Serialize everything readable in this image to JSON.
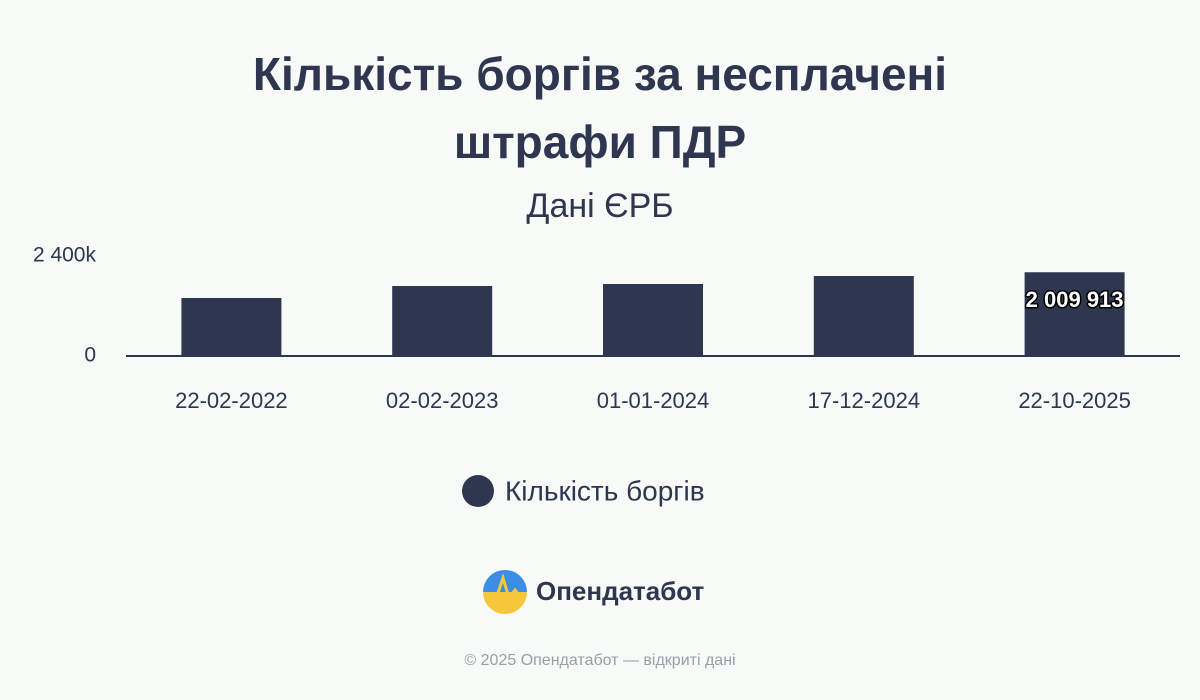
{
  "chart_data": {
    "type": "bar",
    "title": "Кількість боргів за несплачені штрафи ПДР",
    "subtitle": "Дані ЄРБ",
    "categories": [
      "22-02-2022",
      "02-02-2023",
      "01-01-2024",
      "17-12-2024",
      "22-10-2025"
    ],
    "series": [
      {
        "name": "Кількість боргів",
        "color": "#2e3650",
        "values": [
          1392000,
          1680000,
          1728000,
          1920000,
          2009913
        ],
        "value_labels": [
          null,
          null,
          null,
          null,
          "2 009 913"
        ]
      }
    ],
    "ylim": [
      0,
      2400000
    ],
    "yticks": [
      0,
      {
        "value": 2400000,
        "label": "2 400k"
      }
    ],
    "grid": false,
    "legend": "bottom"
  },
  "branding": {
    "logo": "Опендатабот",
    "footer": "© 2025 Опендатабот — відкриті дані"
  }
}
